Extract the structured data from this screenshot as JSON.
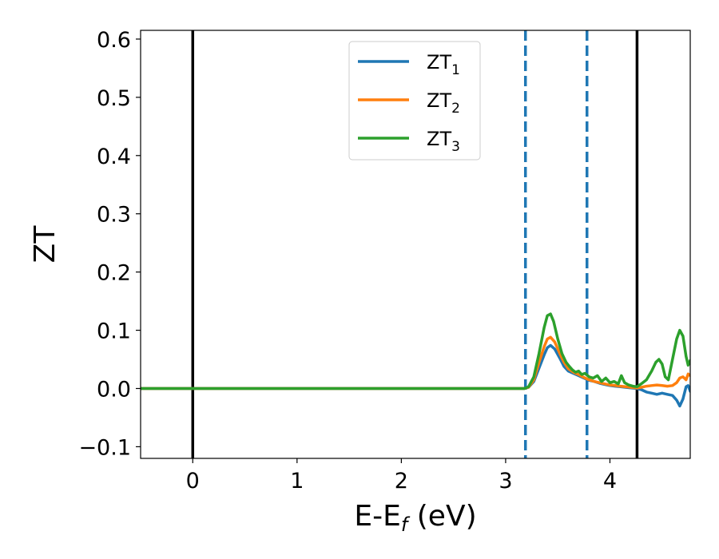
{
  "chart_data": {
    "type": "line",
    "xlabel": "E-E",
    "xlabel_sub": "f",
    "xlabel_unit": " (eV)",
    "ylabel": "ZT",
    "xlim": [
      -0.5,
      4.77
    ],
    "ylim": [
      -0.12,
      0.615
    ],
    "xticks": [
      0,
      1,
      2,
      3,
      4
    ],
    "xtick_labels": [
      "0",
      "1",
      "2",
      "3",
      "4"
    ],
    "yticks": [
      -0.1,
      0.0,
      0.1,
      0.2,
      0.3,
      0.4,
      0.5,
      0.6
    ],
    "ytick_labels": [
      "−0.1",
      "0.0",
      "0.1",
      "0.2",
      "0.3",
      "0.4",
      "0.5",
      "0.6"
    ],
    "grid": false,
    "legend_position": "top-center",
    "vlines": [
      {
        "x": 0.0,
        "style": "solid",
        "color": "#000000"
      },
      {
        "x": 4.26,
        "style": "solid",
        "color": "#000000"
      },
      {
        "x": 3.19,
        "style": "dashed",
        "color": "#1f77b4"
      },
      {
        "x": 3.78,
        "style": "dashed",
        "color": "#1f77b4"
      }
    ],
    "series": [
      {
        "name": "ZT",
        "name_sub": "1",
        "color": "#1f77b4",
        "points": [
          [
            -0.5,
            0
          ],
          [
            3.18,
            0
          ],
          [
            3.22,
            0.002
          ],
          [
            3.27,
            0.012
          ],
          [
            3.32,
            0.035
          ],
          [
            3.37,
            0.058
          ],
          [
            3.4,
            0.07
          ],
          [
            3.43,
            0.074
          ],
          [
            3.47,
            0.068
          ],
          [
            3.52,
            0.052
          ],
          [
            3.56,
            0.038
          ],
          [
            3.6,
            0.03
          ],
          [
            3.65,
            0.026
          ],
          [
            3.7,
            0.022
          ],
          [
            3.75,
            0.018
          ],
          [
            3.8,
            0.014
          ],
          [
            3.85,
            0.012
          ],
          [
            3.9,
            0.009
          ],
          [
            3.95,
            0.007
          ],
          [
            4.0,
            0.005
          ],
          [
            4.05,
            0.004
          ],
          [
            4.1,
            0.003
          ],
          [
            4.15,
            0.002
          ],
          [
            4.2,
            0.001
          ],
          [
            4.26,
            0
          ],
          [
            4.3,
            -0.002
          ],
          [
            4.35,
            -0.006
          ],
          [
            4.4,
            -0.008
          ],
          [
            4.45,
            -0.01
          ],
          [
            4.5,
            -0.008
          ],
          [
            4.55,
            -0.01
          ],
          [
            4.6,
            -0.012
          ],
          [
            4.64,
            -0.02
          ],
          [
            4.67,
            -0.03
          ],
          [
            4.7,
            -0.018
          ],
          [
            4.73,
            0.003
          ],
          [
            4.75,
            0.005
          ],
          [
            4.77,
            -0.005
          ]
        ]
      },
      {
        "name": "ZT",
        "name_sub": "2",
        "color": "#ff7f0e",
        "points": [
          [
            -0.5,
            0
          ],
          [
            3.18,
            0
          ],
          [
            3.22,
            0.002
          ],
          [
            3.27,
            0.015
          ],
          [
            3.32,
            0.045
          ],
          [
            3.37,
            0.072
          ],
          [
            3.4,
            0.085
          ],
          [
            3.43,
            0.088
          ],
          [
            3.47,
            0.08
          ],
          [
            3.52,
            0.06
          ],
          [
            3.56,
            0.045
          ],
          [
            3.6,
            0.034
          ],
          [
            3.65,
            0.028
          ],
          [
            3.7,
            0.024
          ],
          [
            3.75,
            0.019
          ],
          [
            3.8,
            0.015
          ],
          [
            3.85,
            0.012
          ],
          [
            3.9,
            0.01
          ],
          [
            3.95,
            0.008
          ],
          [
            4.0,
            0.006
          ],
          [
            4.05,
            0.005
          ],
          [
            4.1,
            0.004
          ],
          [
            4.15,
            0.003
          ],
          [
            4.2,
            0.002
          ],
          [
            4.26,
            0.001
          ],
          [
            4.3,
            0.002
          ],
          [
            4.35,
            0.004
          ],
          [
            4.4,
            0.005
          ],
          [
            4.45,
            0.006
          ],
          [
            4.5,
            0.005
          ],
          [
            4.55,
            0.004
          ],
          [
            4.6,
            0.005
          ],
          [
            4.64,
            0.01
          ],
          [
            4.67,
            0.018
          ],
          [
            4.7,
            0.02
          ],
          [
            4.73,
            0.015
          ],
          [
            4.75,
            0.025
          ],
          [
            4.77,
            0.022
          ]
        ]
      },
      {
        "name": "ZT",
        "name_sub": "3",
        "color": "#2ca02c",
        "points": [
          [
            -0.5,
            0
          ],
          [
            3.18,
            0
          ],
          [
            3.22,
            0.003
          ],
          [
            3.27,
            0.02
          ],
          [
            3.32,
            0.06
          ],
          [
            3.37,
            0.105
          ],
          [
            3.4,
            0.125
          ],
          [
            3.43,
            0.128
          ],
          [
            3.46,
            0.115
          ],
          [
            3.5,
            0.085
          ],
          [
            3.54,
            0.06
          ],
          [
            3.58,
            0.045
          ],
          [
            3.61,
            0.038
          ],
          [
            3.64,
            0.032
          ],
          [
            3.67,
            0.028
          ],
          [
            3.7,
            0.03
          ],
          [
            3.73,
            0.024
          ],
          [
            3.76,
            0.026
          ],
          [
            3.8,
            0.02
          ],
          [
            3.84,
            0.018
          ],
          [
            3.88,
            0.022
          ],
          [
            3.92,
            0.012
          ],
          [
            3.96,
            0.018
          ],
          [
            4.0,
            0.01
          ],
          [
            4.04,
            0.012
          ],
          [
            4.08,
            0.008
          ],
          [
            4.11,
            0.022
          ],
          [
            4.14,
            0.01
          ],
          [
            4.18,
            0.006
          ],
          [
            4.22,
            0.004
          ],
          [
            4.26,
            0.003
          ],
          [
            4.3,
            0.008
          ],
          [
            4.35,
            0.015
          ],
          [
            4.4,
            0.03
          ],
          [
            4.44,
            0.045
          ],
          [
            4.47,
            0.05
          ],
          [
            4.5,
            0.042
          ],
          [
            4.53,
            0.02
          ],
          [
            4.56,
            0.015
          ],
          [
            4.6,
            0.05
          ],
          [
            4.64,
            0.085
          ],
          [
            4.67,
            0.1
          ],
          [
            4.7,
            0.09
          ],
          [
            4.73,
            0.055
          ],
          [
            4.75,
            0.04
          ],
          [
            4.77,
            0.048
          ]
        ]
      }
    ]
  }
}
